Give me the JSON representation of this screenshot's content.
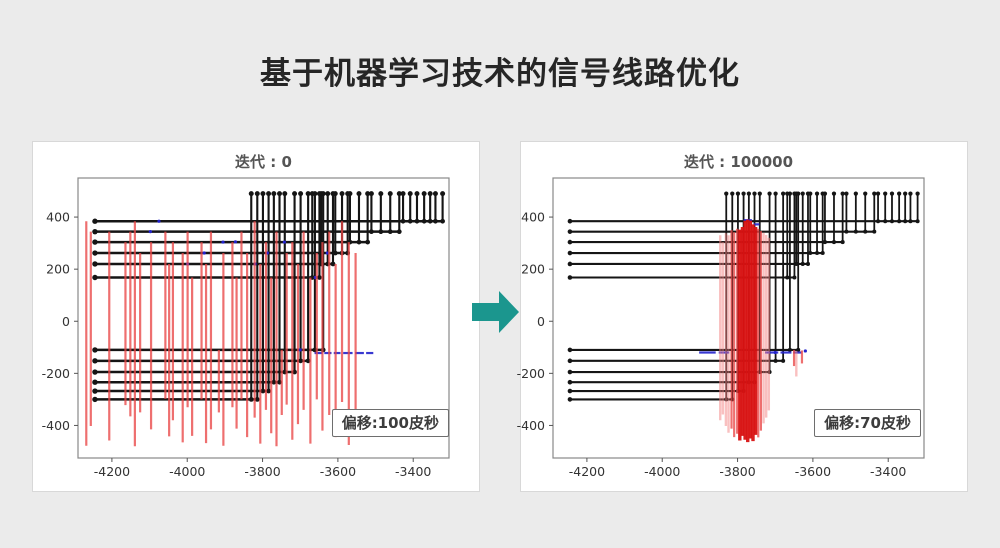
{
  "page": {
    "title": "基于机器学习技术的信号线路优化",
    "background": "#ebebeb",
    "accent_arrow_color": "#1b968e"
  },
  "chart_data": [
    {
      "type": "line",
      "title": "迭代 : 0",
      "annotation": "偏移:100皮秒",
      "xlabel": "",
      "ylabel": "",
      "xlim": [
        -4290,
        -3305
      ],
      "ylim": [
        -525,
        550
      ],
      "xticks": [
        -4200,
        -4000,
        -3800,
        -3600,
        -3400
      ],
      "yticks": [
        -400,
        -200,
        0,
        200,
        400
      ],
      "grid": false,
      "legend": "none",
      "stroke_width": 2.5,
      "wire_color": "#151515",
      "red_color": "#e84646",
      "blue_color": "#2222cc",
      "pin_row_y": 490,
      "net_start_x": -4245,
      "nets": [
        {
          "y": -300,
          "taps": [
            -3830,
            -3814
          ]
        },
        {
          "y": -268,
          "taps": [
            -3799,
            -3784
          ]
        },
        {
          "y": -234,
          "taps": [
            -3770,
            -3755
          ]
        },
        {
          "y": -195,
          "taps": [
            -3741,
            -3715
          ]
        },
        {
          "y": -152,
          "taps": [
            -3699,
            -3679
          ]
        },
        {
          "y": -110,
          "taps": [
            -3661,
            -3639
          ]
        },
        {
          "y": 168,
          "taps": [
            -3668,
            -3649
          ]
        },
        {
          "y": 220,
          "taps": [
            -3644,
            -3627,
            -3613
          ]
        },
        {
          "y": 262,
          "taps": [
            -3607,
            -3589,
            -3574
          ]
        },
        {
          "y": 304,
          "taps": [
            -3568,
            -3544,
            -3521
          ]
        },
        {
          "y": 344,
          "taps": [
            -3511,
            -3486,
            -3461,
            -3437
          ]
        },
        {
          "y": 384,
          "taps": [
            -3427,
            -3408,
            -3390,
            -3371,
            -3355,
            -3341,
            -3322
          ]
        }
      ],
      "red_drops": [
        [
          -4268,
          384,
          -478,
          1
        ],
        [
          -4256,
          344,
          -402,
          1
        ],
        [
          -4207,
          344,
          -458,
          1
        ],
        [
          -4164,
          304,
          -322,
          1
        ],
        [
          -4151,
          344,
          -365,
          1
        ],
        [
          -4139,
          384,
          -480,
          1
        ],
        [
          -4125,
          262,
          -350,
          1
        ],
        [
          -4096,
          304,
          -415,
          1
        ],
        [
          -4058,
          344,
          -298,
          1
        ],
        [
          -4048,
          220,
          -442,
          1
        ],
        [
          -4038,
          304,
          -380,
          1
        ],
        [
          -4012,
          262,
          -465,
          1
        ],
        [
          -3999,
          344,
          -330,
          1
        ],
        [
          -3987,
          168,
          -440,
          1
        ],
        [
          -3962,
          304,
          -300,
          1
        ],
        [
          -3950,
          220,
          -468,
          1
        ],
        [
          -3937,
          344,
          -415,
          1
        ],
        [
          -3916,
          -110,
          -350,
          1
        ],
        [
          -3904,
          262,
          -478,
          1
        ],
        [
          -3880,
          304,
          -330,
          1
        ],
        [
          -3869,
          168,
          -412,
          1
        ],
        [
          -3856,
          344,
          -300,
          1
        ],
        [
          -3841,
          262,
          -445,
          1
        ],
        [
          -3821,
          384,
          -370,
          1
        ],
        [
          -3806,
          220,
          -470,
          1
        ],
        [
          -3791,
          304,
          -340,
          1
        ],
        [
          -3777,
          168,
          -430,
          1
        ],
        [
          -3763,
          344,
          -480,
          1
        ],
        [
          -3749,
          -110,
          -360,
          1
        ],
        [
          -3736,
          262,
          -320,
          1
        ],
        [
          -3721,
          304,
          -455,
          1
        ],
        [
          -3706,
          220,
          -395,
          1
        ],
        [
          -3691,
          344,
          -340,
          1
        ],
        [
          -3673,
          168,
          -470,
          1
        ],
        [
          -3656,
          262,
          -300,
          1
        ],
        [
          -3641,
          304,
          -420,
          1
        ],
        [
          -3623,
          344,
          -360,
          1
        ],
        [
          -3606,
          220,
          -445,
          1
        ],
        [
          -3589,
          384,
          -310,
          1
        ],
        [
          -3571,
          304,
          -475,
          1
        ],
        [
          -3553,
          262,
          -340,
          1
        ]
      ],
      "blue_segments": [
        [
          -3662,
          -3641,
          -122
        ],
        [
          -3636,
          -3617,
          -122
        ],
        [
          -3611,
          -3593,
          -122
        ],
        [
          -3586,
          -3561,
          -122
        ],
        [
          -3554,
          -3531,
          -122
        ],
        [
          -3525,
          -3506,
          -122
        ]
      ],
      "blue_dots": [
        [
          -4098,
          344
        ],
        [
          -4075,
          384
        ],
        [
          -3999,
          220
        ],
        [
          -3955,
          262
        ],
        [
          -3905,
          304
        ],
        [
          -3872,
          305
        ],
        [
          -3820,
          220
        ],
        [
          -3787,
          262
        ],
        [
          -3742,
          304
        ],
        [
          -3700,
          -110
        ],
        [
          -3660,
          168
        ],
        [
          -3628,
          262
        ]
      ]
    },
    {
      "type": "line",
      "title": "迭代 : 100000",
      "annotation": "偏移:70皮秒",
      "xlabel": "",
      "ylabel": "",
      "xlim": [
        -4290,
        -3305
      ],
      "ylim": [
        -525,
        550
      ],
      "xticks": [
        -4200,
        -4000,
        -3800,
        -3600,
        -3400
      ],
      "yticks": [
        -400,
        -200,
        0,
        200,
        400
      ],
      "grid": false,
      "legend": "none",
      "stroke_width": 2.1,
      "wire_color": "#151515",
      "red_color": "#e01d1d",
      "blue_color": "#2222cc",
      "pin_row_y": 490,
      "net_start_x": -4245,
      "nets": [
        {
          "y": -300,
          "taps": [
            -3830,
            -3814
          ]
        },
        {
          "y": -268,
          "taps": [
            -3799,
            -3784
          ]
        },
        {
          "y": -234,
          "taps": [
            -3770,
            -3755
          ]
        },
        {
          "y": -195,
          "taps": [
            -3741,
            -3715
          ]
        },
        {
          "y": -152,
          "taps": [
            -3699,
            -3679
          ]
        },
        {
          "y": -110,
          "taps": [
            -3661,
            -3639
          ]
        },
        {
          "y": 168,
          "taps": [
            -3668,
            -3649
          ]
        },
        {
          "y": 220,
          "taps": [
            -3644,
            -3627,
            -3613
          ]
        },
        {
          "y": 262,
          "taps": [
            -3607,
            -3589,
            -3574
          ]
        },
        {
          "y": 304,
          "taps": [
            -3568,
            -3544,
            -3521
          ]
        },
        {
          "y": 344,
          "taps": [
            -3511,
            -3486,
            -3461,
            -3437
          ]
        },
        {
          "y": 384,
          "taps": [
            -3427,
            -3408,
            -3390,
            -3371,
            -3355,
            -3341,
            -3322
          ]
        }
      ],
      "red_drops": [
        [
          -3846,
          330,
          -380,
          0
        ],
        [
          -3839,
          305,
          -358,
          0
        ],
        [
          -3831,
          338,
          -402,
          0
        ],
        [
          -3824,
          330,
          -428,
          0
        ],
        [
          -3816,
          350,
          -412,
          1
        ],
        [
          -3809,
          342,
          -445,
          1
        ],
        [
          -3801,
          355,
          -432,
          1
        ],
        [
          -3794,
          352,
          -458,
          2
        ],
        [
          -3787,
          362,
          -440,
          2
        ],
        [
          -3780,
          386,
          -455,
          2
        ],
        [
          -3773,
          390,
          -464,
          2
        ],
        [
          -3766,
          386,
          -450,
          2
        ],
        [
          -3759,
          372,
          -460,
          2
        ],
        [
          -3752,
          362,
          -436,
          2
        ],
        [
          -3745,
          355,
          -446,
          1
        ],
        [
          -3738,
          346,
          -420,
          1
        ],
        [
          -3731,
          340,
          -392,
          0
        ],
        [
          -3724,
          331,
          -370,
          0
        ],
        [
          -3717,
          320,
          -342,
          0
        ],
        [
          -3650,
          -110,
          -172,
          1
        ],
        [
          -3644,
          -114,
          -212,
          0
        ],
        [
          -3629,
          -112,
          -162,
          1
        ]
      ],
      "blue_segments": [
        [
          -3902,
          -3858,
          -120
        ],
        [
          -3850,
          -3822,
          -120
        ],
        [
          -3727,
          -3692,
          -120
        ],
        [
          -3686,
          -3657,
          -120
        ],
        [
          -3652,
          -3630,
          -120
        ],
        [
          -3784,
          -3762,
          388
        ],
        [
          -3757,
          -3742,
          372
        ]
      ],
      "blue_dots": [
        [
          -3700,
          -120
        ],
        [
          -3620,
          -114
        ]
      ]
    }
  ]
}
